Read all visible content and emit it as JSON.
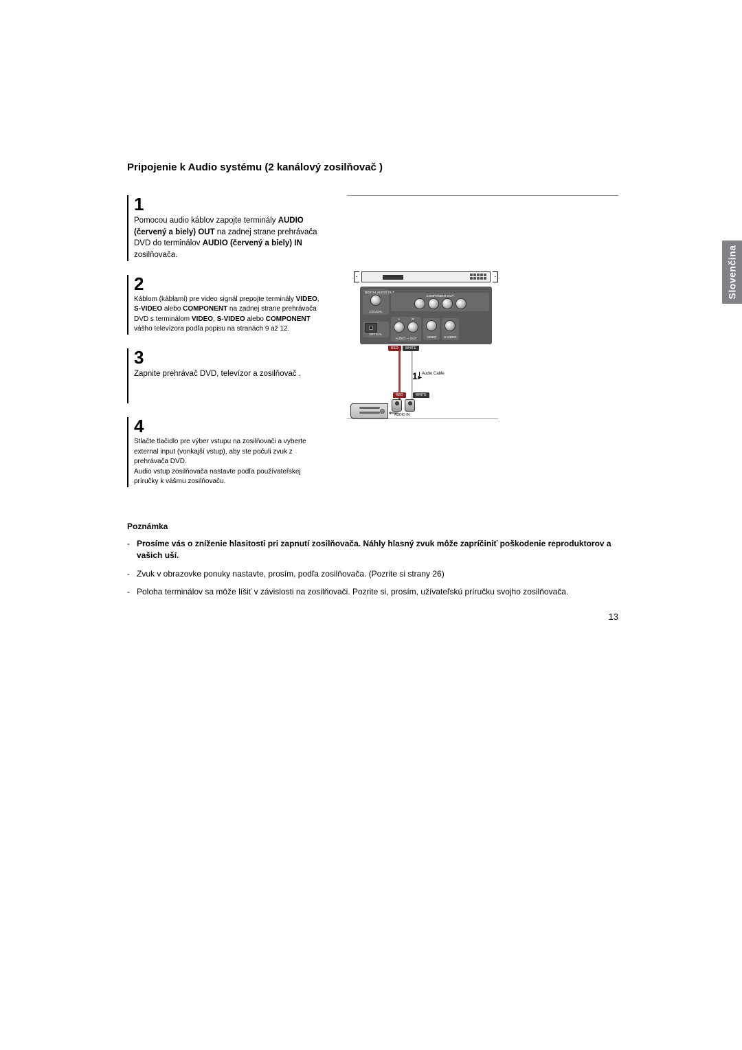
{
  "title": "Pripojenie k Audio systému (2 kanálový zosilňovač )",
  "sideTab": "Slovenčina",
  "pageNumber": "13",
  "steps": [
    {
      "num": "1",
      "html": "Pomocou audio káblov zapojte terminály <b>AUDIO (červený a biely) OUT</b> na zadnej strane prehrávača DVD do terminálov <b>AUDIO (červený a biely) IN</b> zosilňovača.",
      "size": "norm"
    },
    {
      "num": "2",
      "html": "Káblom (káblami) pre video signál prepojte terminály <b>VIDEO</b>, <b>S-VIDEO</b> alebo <b>COMPONENT</b> na zadnej strane prehrávača DVD s terminálom <b>VIDEO</b>, <b>S-VIDEO</b> alebo <b>COMPONENT</b> vášho televízora podľa popisu na stranách 9 až 12.",
      "size": "sm"
    },
    {
      "num": "3",
      "html": "Zapnite prehrávač DVD, televízor a zosilňovač .",
      "size": "norm",
      "tall": true
    },
    {
      "num": "4",
      "html": "Stlačte tlačidlo pre výber vstupu na zosilňovači a vyberte external input (vonkajší vstup), aby ste počuli zvuk z prehrávača DVD.<br>Audio vstup zosilňovača nastavte podľa používateľskej príručky k vášmu zosilňovaču.",
      "size": "sm"
    }
  ],
  "notesTitle": "Poznámka",
  "notes": [
    {
      "html": "<b>Prosíme vás o zníženie hlasitosti pri zapnutí zosilňovača. Náhly hlasný zvuk môže zapríčiniť poškodenie reproduktorov a vašich uší.</b>"
    },
    {
      "html": "Zvuk v obrazovke ponuky nastavte, prosím, podľa zosilňovača. (Pozrite si strany 26)"
    },
    {
      "html": "Poloha terminálov sa môže líšiť v závislosti na zosilňovači. Pozrite si, prosím, užívateľskú príručku svojho zosilňovača."
    }
  ],
  "diagram": {
    "portLabels": {
      "digAudioOut": "DIGITAL AUDIO OUT",
      "coaxial": "COAXIAL",
      "componentOut": "COMPONENT OUT",
      "optical": "OPTICAL",
      "audio": "AUDIO",
      "out": "OUT",
      "video": "VIDEO",
      "svideo": "S-VIDEO",
      "red": "RED",
      "white": "WHITE",
      "audioCable": "Audio Cable",
      "audioIn": "AUDIO IN",
      "stepMarker": "1"
    }
  }
}
